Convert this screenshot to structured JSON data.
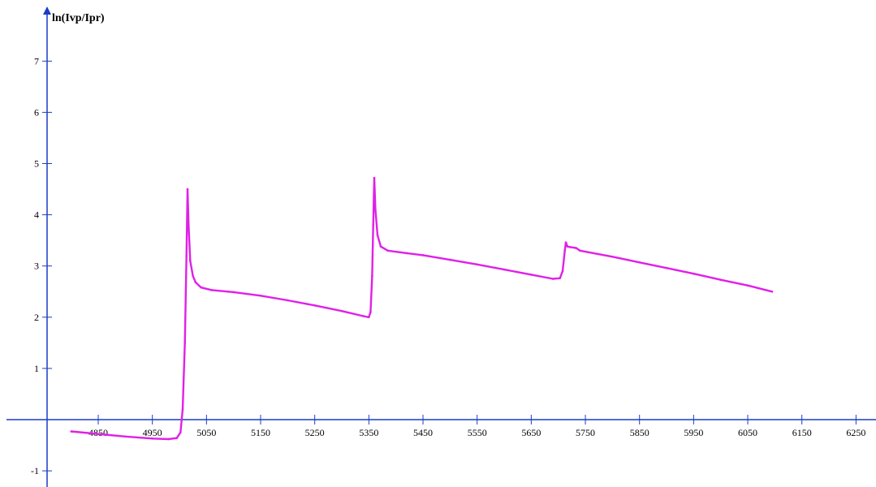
{
  "chart_data": {
    "type": "line",
    "title": "",
    "xlabel": "",
    "ylabel": "ln(Ivp/Ipr)",
    "x_ticks": [
      4850,
      4950,
      5050,
      5150,
      5250,
      5350,
      5450,
      5550,
      5650,
      5750,
      5850,
      5950,
      6050,
      6150,
      6250
    ],
    "y_ticks": [
      -1,
      1,
      2,
      3,
      4,
      5,
      6,
      7
    ],
    "xlim": [
      4755,
      6300
    ],
    "ylim": [
      -1.35,
      7.9
    ],
    "grid": false,
    "legend": "none",
    "colors": {
      "axis": "#1a3cc8",
      "series": "#e020e8"
    },
    "series": [
      {
        "points": [
          [
            4800,
            -0.23
          ],
          [
            4850,
            -0.28
          ],
          [
            4900,
            -0.33
          ],
          [
            4950,
            -0.37
          ],
          [
            4980,
            -0.38
          ],
          [
            4995,
            -0.36
          ],
          [
            5002,
            -0.25
          ],
          [
            5006,
            0.2
          ],
          [
            5010,
            1.5
          ],
          [
            5013,
            3.2
          ],
          [
            5015,
            4.5
          ],
          [
            5017,
            3.8
          ],
          [
            5020,
            3.1
          ],
          [
            5025,
            2.8
          ],
          [
            5030,
            2.68
          ],
          [
            5040,
            2.58
          ],
          [
            5060,
            2.53
          ],
          [
            5090,
            2.5
          ],
          [
            5100,
            2.49
          ],
          [
            5150,
            2.42
          ],
          [
            5200,
            2.33
          ],
          [
            5250,
            2.23
          ],
          [
            5300,
            2.12
          ],
          [
            5340,
            2.02
          ],
          [
            5350,
            2.0
          ],
          [
            5353,
            2.1
          ],
          [
            5356,
            2.8
          ],
          [
            5358,
            3.8
          ],
          [
            5360,
            4.72
          ],
          [
            5362,
            4.1
          ],
          [
            5366,
            3.6
          ],
          [
            5372,
            3.38
          ],
          [
            5385,
            3.3
          ],
          [
            5420,
            3.25
          ],
          [
            5450,
            3.21
          ],
          [
            5500,
            3.12
          ],
          [
            5550,
            3.03
          ],
          [
            5600,
            2.93
          ],
          [
            5650,
            2.83
          ],
          [
            5690,
            2.75
          ],
          [
            5703,
            2.76
          ],
          [
            5708,
            2.9
          ],
          [
            5712,
            3.3
          ],
          [
            5714,
            3.46
          ],
          [
            5717,
            3.38
          ],
          [
            5722,
            3.37
          ],
          [
            5733,
            3.35
          ],
          [
            5740,
            3.3
          ],
          [
            5800,
            3.18
          ],
          [
            5850,
            3.07
          ],
          [
            5900,
            2.96
          ],
          [
            5950,
            2.85
          ],
          [
            6000,
            2.73
          ],
          [
            6050,
            2.62
          ],
          [
            6095,
            2.5
          ]
        ]
      }
    ]
  }
}
